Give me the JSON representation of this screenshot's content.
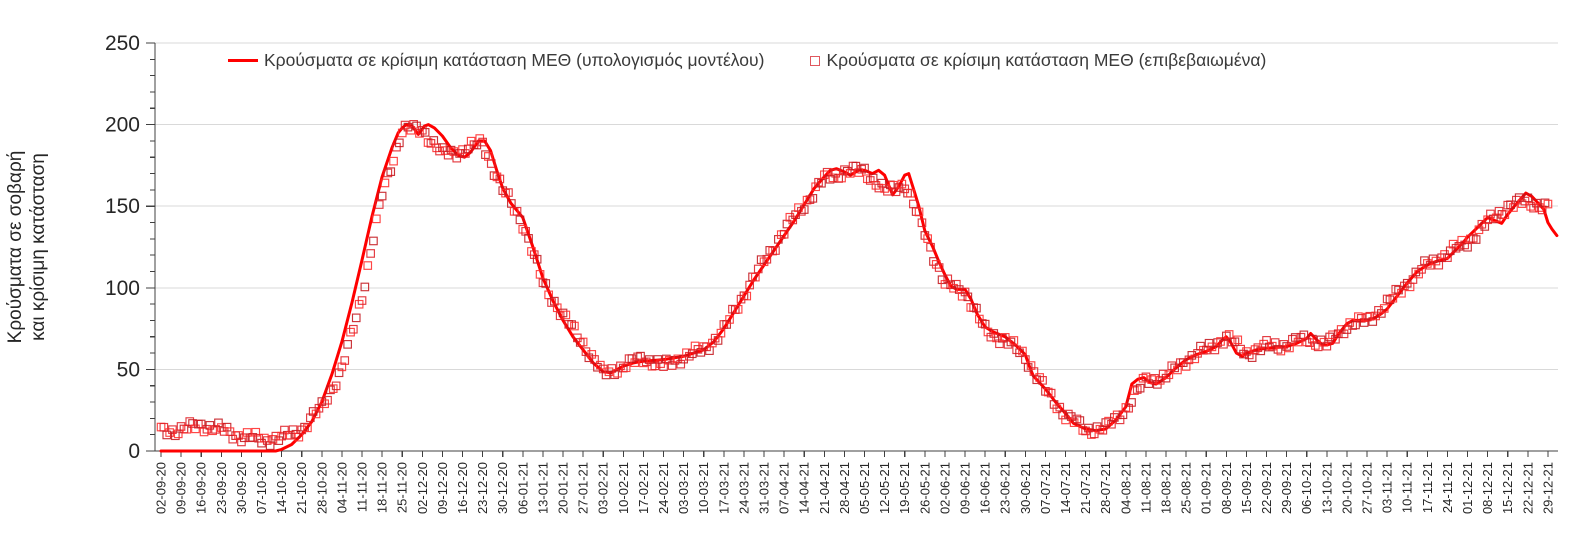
{
  "chart_data": {
    "type": "line+scatter",
    "title": "",
    "ylabel_lines": [
      "Κρούσματα σε σοβαρή",
      "και κρίσιμη κατάσταση"
    ],
    "xlabel": "",
    "ylim": [
      0,
      250
    ],
    "yticks": [
      0,
      50,
      100,
      150,
      200,
      250
    ],
    "y_minor_step": 10,
    "grid": "horizontal-only",
    "grid_color": "#d9d9d9",
    "axis_color": "#404040",
    "tick_label_color": "#262626",
    "legend_position": "top-center",
    "categories": [
      "02-09-20",
      "09-09-20",
      "16-09-20",
      "23-09-20",
      "30-09-20",
      "07-10-20",
      "14-10-20",
      "21-10-20",
      "28-10-20",
      "04-11-20",
      "11-11-20",
      "18-11-20",
      "25-11-20",
      "02-12-20",
      "09-12-20",
      "16-12-20",
      "23-12-20",
      "30-12-20",
      "06-01-21",
      "13-01-21",
      "20-01-21",
      "27-01-21",
      "03-02-21",
      "10-02-21",
      "17-02-21",
      "24-02-21",
      "03-03-21",
      "10-03-21",
      "17-03-21",
      "24-03-21",
      "31-03-21",
      "07-04-21",
      "14-04-21",
      "21-04-21",
      "28-04-21",
      "05-05-21",
      "12-05-21",
      "19-05-21",
      "26-05-21",
      "02-06-21",
      "09-06-21",
      "16-06-21",
      "23-06-21",
      "30-06-21",
      "07-07-21",
      "14-07-21",
      "21-07-21",
      "28-07-21",
      "04-08-21",
      "11-08-21",
      "18-08-21",
      "25-08-21",
      "01-09-21",
      "08-09-21",
      "15-09-21",
      "22-09-21",
      "29-09-21",
      "06-10-21",
      "13-10-21",
      "20-10-21",
      "27-10-21",
      "03-11-21",
      "10-11-21",
      "17-11-21",
      "24-11-21",
      "01-12-21",
      "08-12-21",
      "15-12-21",
      "22-12-21",
      "29-12-21"
    ],
    "series": [
      {
        "name": "Κρούσματα σε κρίσιμη κατάσταση ΜΕΘ (υπολογισμός μοντέλου)",
        "type": "line",
        "color": "#ff0000",
        "line_width": 3,
        "points": [
          [
            0,
            0
          ],
          [
            4,
            0
          ],
          [
            5,
            0
          ],
          [
            5.7,
            0
          ],
          [
            6,
            1
          ],
          [
            6.5,
            4
          ],
          [
            7,
            10
          ],
          [
            7.5,
            18
          ],
          [
            8,
            30
          ],
          [
            8.5,
            47
          ],
          [
            9,
            67
          ],
          [
            9.5,
            91
          ],
          [
            10,
            117
          ],
          [
            10.5,
            144
          ],
          [
            11,
            168
          ],
          [
            11.5,
            186
          ],
          [
            11.8,
            195
          ],
          [
            12,
            198
          ],
          [
            12.2,
            200
          ],
          [
            12.5,
            199
          ],
          [
            12.8,
            194
          ],
          [
            13.1,
            199
          ],
          [
            13.3,
            200
          ],
          [
            13.6,
            198
          ],
          [
            14,
            193
          ],
          [
            14.4,
            186
          ],
          [
            14.8,
            181
          ],
          [
            15.1,
            180
          ],
          [
            15.4,
            183
          ],
          [
            15.8,
            190
          ],
          [
            16.1,
            190
          ],
          [
            16.4,
            184
          ],
          [
            16.7,
            172
          ],
          [
            17,
            161
          ],
          [
            17.4,
            152
          ],
          [
            18,
            143
          ],
          [
            18.5,
            125
          ],
          [
            19,
            106
          ],
          [
            19.5,
            92
          ],
          [
            20,
            80
          ],
          [
            20.5,
            70
          ],
          [
            21,
            62
          ],
          [
            21.5,
            54
          ],
          [
            22,
            48.5
          ],
          [
            22.4,
            48
          ],
          [
            22.7,
            50
          ],
          [
            23,
            52
          ],
          [
            23.5,
            54
          ],
          [
            24,
            55
          ],
          [
            25,
            56
          ],
          [
            26,
            58
          ],
          [
            26.5,
            60
          ],
          [
            27,
            62
          ],
          [
            27.5,
            67
          ],
          [
            28,
            75
          ],
          [
            28.5,
            85
          ],
          [
            29,
            95
          ],
          [
            29.5,
            105
          ],
          [
            30,
            114
          ],
          [
            30.5,
            123
          ],
          [
            31,
            132
          ],
          [
            31.5,
            141
          ],
          [
            32,
            151
          ],
          [
            32.5,
            161
          ],
          [
            33,
            168
          ],
          [
            33.3,
            172
          ],
          [
            33.6,
            173
          ],
          [
            34,
            171
          ],
          [
            34.3,
            169
          ],
          [
            34.7,
            172
          ],
          [
            35,
            172
          ],
          [
            35.4,
            170
          ],
          [
            35.7,
            172
          ],
          [
            36,
            169
          ],
          [
            36.2,
            163
          ],
          [
            36.4,
            157
          ],
          [
            36.7,
            162
          ],
          [
            37,
            169
          ],
          [
            37.2,
            170
          ],
          [
            37.5,
            158
          ],
          [
            37.7,
            150
          ],
          [
            38,
            135
          ],
          [
            38.4,
            125
          ],
          [
            38.7,
            116
          ],
          [
            39,
            108
          ],
          [
            39.3,
            101
          ],
          [
            39.6,
            99
          ],
          [
            40,
            99
          ],
          [
            40.3,
            93
          ],
          [
            40.6,
            84
          ],
          [
            41,
            76
          ],
          [
            41.4,
            73
          ],
          [
            42,
            70
          ],
          [
            42.5,
            65
          ],
          [
            43,
            59
          ],
          [
            43.2,
            52
          ],
          [
            43.4,
            46
          ],
          [
            44,
            38
          ],
          [
            44.5,
            30
          ],
          [
            45,
            23
          ],
          [
            45.4,
            17
          ],
          [
            46,
            13.5
          ],
          [
            46.5,
            12.5
          ],
          [
            47,
            13.5
          ],
          [
            47.5,
            19
          ],
          [
            48,
            27
          ],
          [
            48.15,
            34
          ],
          [
            48.3,
            41
          ],
          [
            48.6,
            44
          ],
          [
            48.9,
            45
          ],
          [
            49.2,
            42
          ],
          [
            49.5,
            41
          ],
          [
            50,
            45
          ],
          [
            50.5,
            51
          ],
          [
            51,
            56
          ],
          [
            51.5,
            59
          ],
          [
            52,
            61
          ],
          [
            52.5,
            64
          ],
          [
            52.8,
            68
          ],
          [
            53,
            70
          ],
          [
            53.2,
            67
          ],
          [
            53.5,
            60
          ],
          [
            53.8,
            58
          ],
          [
            54,
            60
          ],
          [
            54.5,
            62
          ],
          [
            55,
            63
          ],
          [
            56,
            64
          ],
          [
            56.5,
            66
          ],
          [
            57,
            69
          ],
          [
            57.2,
            72
          ],
          [
            57.5,
            68
          ],
          [
            57.8,
            65
          ],
          [
            58,
            65
          ],
          [
            58.3,
            66
          ],
          [
            58.6,
            72
          ],
          [
            59,
            78
          ],
          [
            59.3,
            80
          ],
          [
            60,
            80
          ],
          [
            60.3,
            81
          ],
          [
            60.7,
            84
          ],
          [
            61,
            87
          ],
          [
            61.5,
            95
          ],
          [
            62,
            103
          ],
          [
            62.5,
            110
          ],
          [
            63,
            114
          ],
          [
            63.4,
            116
          ],
          [
            64,
            118
          ],
          [
            64.4,
            123
          ],
          [
            64.8,
            128
          ],
          [
            65,
            131
          ],
          [
            65.5,
            137
          ],
          [
            66,
            143
          ],
          [
            66.4,
            141
          ],
          [
            66.7,
            139.5
          ],
          [
            67,
            145
          ],
          [
            67.4,
            151
          ],
          [
            67.9,
            158
          ],
          [
            68.2,
            156
          ],
          [
            68.5,
            152
          ],
          [
            68.8,
            148
          ],
          [
            69,
            140
          ],
          [
            69.2,
            136
          ],
          [
            69.45,
            132
          ]
        ]
      },
      {
        "name": "Κρούσματα σε κρίσιμη κατάσταση ΜΕΘ (επιβεβαιωμένα)",
        "type": "scatter",
        "marker": "open-square",
        "marker_size": 7.5,
        "colors": [
          "#ff2a2a",
          "#e01f26",
          "#c4161c"
        ],
        "sampling": "daily",
        "weekly_values": [
          12,
          13,
          16,
          13,
          9,
          7,
          8,
          13,
          27,
          50,
          95,
          157,
          197,
          197,
          182,
          184,
          189,
          160,
          140,
          103,
          83,
          66,
          47,
          52,
          57,
          52,
          58,
          62,
          74,
          96,
          116,
          135,
          151,
          167,
          171,
          172,
          159,
          164,
          134,
          102,
          98,
          74,
          68,
          58,
          37,
          22,
          13,
          14,
          26,
          44,
          45,
          56,
          62,
          70,
          60,
          64,
          65,
          69,
          65,
          77,
          80,
          90,
          103,
          114,
          121,
          128,
          140,
          150,
          153,
          149
        ]
      }
    ]
  }
}
